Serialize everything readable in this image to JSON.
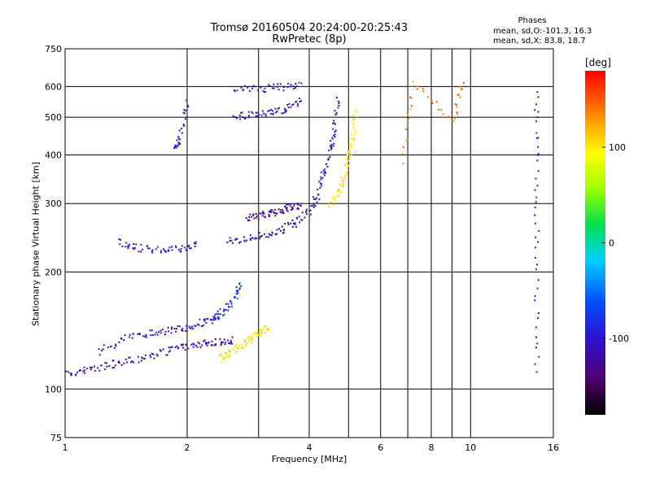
{
  "title_line1": "Tromsø 20160504 20:24:00-20:25:43",
  "title_line2": "RwPretec (8p)",
  "phases_header": "Phases",
  "phase_stats": [
    "mean, sd,O:-101.3, 16.3",
    "mean, sd,X: 83.8, 18.7"
  ],
  "colorbar": {
    "unit": "[deg]",
    "ticks": [
      100,
      0,
      -100
    ],
    "range": [
      -180,
      180
    ]
  },
  "chart_data": {
    "type": "scatter",
    "title": "Tromsø 20160504 20:24:00-20:25:43",
    "subtitle": "RwPretec (8p)",
    "xlabel": "Frequency [MHz]",
    "ylabel": "Stationary phase Virtual Height [km]",
    "xscale": "log",
    "yscale": "log",
    "xlim": [
      1,
      16
    ],
    "ylim": [
      75,
      750
    ],
    "xticks": [
      1,
      2,
      4,
      6,
      8,
      10,
      16
    ],
    "xgrid": [
      1,
      2,
      3,
      4,
      5,
      6,
      7,
      8,
      9,
      10,
      16
    ],
    "yticks": [
      75,
      100,
      200,
      300,
      400,
      500,
      600,
      750
    ],
    "grid": true,
    "color_scale": "phase [deg], -180 (black) to 180 (red)",
    "series": [
      {
        "x": [
          1.0,
          1.1,
          1.25,
          1.4,
          1.6,
          1.8,
          2.0,
          2.2,
          2.4,
          2.6
        ],
        "y": [
          110,
          112,
          115,
          118,
          122,
          126,
          130,
          132,
          133,
          134
        ],
        "phase": -110
      },
      {
        "x": [
          1.2,
          1.4,
          1.6,
          1.8,
          2.0,
          2.2,
          2.4
        ],
        "y": [
          125,
          135,
          140,
          142,
          145,
          150,
          155
        ],
        "phase": -105
      },
      {
        "x": [
          2.4,
          2.55,
          2.7,
          2.85,
          3.0,
          3.15
        ],
        "y": [
          120,
          125,
          130,
          135,
          140,
          145
        ],
        "phase": 100
      },
      {
        "x": [
          2.3,
          2.45,
          2.6,
          2.7
        ],
        "y": [
          150,
          160,
          170,
          190
        ],
        "phase": -75
      },
      {
        "x": [
          1.35,
          1.5,
          1.7,
          1.9,
          2.1
        ],
        "y": [
          240,
          232,
          228,
          230,
          236
        ],
        "phase": -100
      },
      {
        "x": [
          2.5,
          2.8,
          3.1,
          3.4,
          3.7,
          4.0,
          4.2
        ],
        "y": [
          242,
          245,
          250,
          258,
          270,
          290,
          320
        ],
        "phase": -110
      },
      {
        "x": [
          2.8,
          3.0,
          3.2,
          3.4,
          3.6,
          3.8
        ],
        "y": [
          275,
          280,
          285,
          290,
          295,
          300
        ],
        "phase": -120
      },
      {
        "x": [
          4.2,
          4.35,
          4.5,
          4.6,
          4.7
        ],
        "y": [
          330,
          370,
          420,
          480,
          560
        ],
        "phase": -95
      },
      {
        "x": [
          4.5,
          4.7,
          4.9,
          5.0,
          5.1,
          5.2
        ],
        "y": [
          300,
          320,
          360,
          400,
          450,
          520
        ],
        "phase": 100
      },
      {
        "x": [
          2.6,
          2.9,
          3.2,
          3.5,
          3.8
        ],
        "y": [
          505,
          510,
          515,
          530,
          550
        ],
        "phase": -100
      },
      {
        "x": [
          2.6,
          3.0,
          3.4,
          3.8
        ],
        "y": [
          590,
          595,
          600,
          610
        ],
        "phase": -95
      },
      {
        "x": [
          1.85,
          1.9,
          2.0
        ],
        "y": [
          420,
          440,
          560
        ],
        "phase": -110
      },
      {
        "x": [
          14.5,
          14.5,
          14.5,
          14.5
        ],
        "y": [
          590,
          370,
          210,
          110
        ],
        "phase": -100
      },
      {
        "x": [
          6.8,
          7.2,
          9.0,
          9.5
        ],
        "y": [
          390,
          615,
          490,
          615
        ],
        "phase": 140
      }
    ]
  }
}
